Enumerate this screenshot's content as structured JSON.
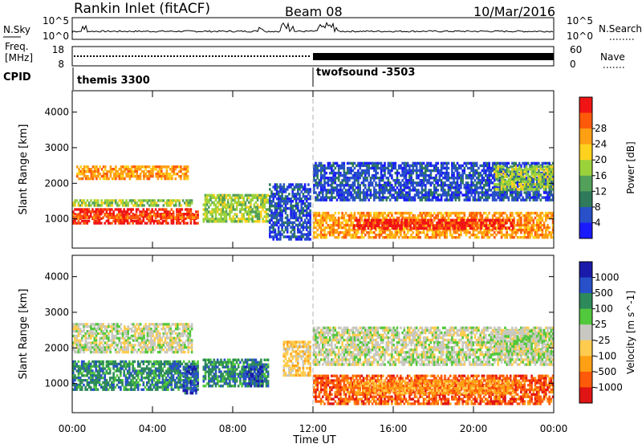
{
  "header": {
    "station": "Rankin Inlet (fitACF)",
    "beam": "Beam 08",
    "date": "10/Mar/2016"
  },
  "noise_panel": {
    "left_label": "N.Sky",
    "right_label": "N.Search",
    "left_ticks": [
      "10^5",
      "10^0"
    ],
    "right_ticks": [
      "10^5",
      "10^0"
    ]
  },
  "freq_panel": {
    "left_label_1": "Freq.",
    "left_label_2": "[MHz]",
    "left_ticks": [
      "18",
      "8"
    ],
    "right_label": "Nave",
    "right_ticks": [
      "60",
      "0"
    ]
  },
  "cpid": {
    "label": "CPID",
    "segments": [
      {
        "name": "themis 3300",
        "start_hour": 0
      },
      {
        "name": "twofsound -3503",
        "start_hour": 12
      }
    ]
  },
  "colors": {
    "power": [
      "#1a1aff",
      "#2850c8",
      "#2e7a5a",
      "#52a05a",
      "#9bd23c",
      "#ffd21e",
      "#ffa014",
      "#ff5a0a",
      "#f01414"
    ],
    "velocity": [
      "#e01414",
      "#ff5a0a",
      "#ffa014",
      "#ffcc50",
      "#c8c8c0",
      "#52c83c",
      "#2e8a5a",
      "#2850c8",
      "#1a1aaa"
    ]
  },
  "chart_data": [
    {
      "type": "heatmap",
      "title": "Power",
      "ylabel": "Slant Range [km]",
      "xlabel": "",
      "x_ticks": [
        "00:00",
        "04:00",
        "08:00",
        "12:00",
        "16:00",
        "20:00",
        "00:00"
      ],
      "xlim_hours": [
        0,
        24
      ],
      "y_ticks": [
        1000,
        2000,
        3000,
        4000
      ],
      "ylim": [
        180,
        4600
      ],
      "colorbar": {
        "label": "Power [dB]",
        "ticks": [
          4,
          8,
          12,
          16,
          20,
          24,
          28
        ]
      },
      "bands": [
        {
          "t0": 0.0,
          "t1": 6.3,
          "r0": 850,
          "r1": 1300,
          "level": 8
        },
        {
          "t0": 0.0,
          "t1": 6.3,
          "r0": 1000,
          "r1": 1150,
          "level": 7
        },
        {
          "t0": 0.0,
          "t1": 6.0,
          "r0": 1350,
          "r1": 1550,
          "level": 4
        },
        {
          "t0": 0.2,
          "t1": 5.8,
          "r0": 2100,
          "r1": 2500,
          "level": 6
        },
        {
          "t0": 6.5,
          "t1": 9.8,
          "r0": 900,
          "r1": 1700,
          "level": 4
        },
        {
          "t0": 9.8,
          "t1": 11.9,
          "r0": 400,
          "r1": 2000,
          "level": 1
        },
        {
          "t0": 12.0,
          "t1": 24.0,
          "r0": 450,
          "r1": 1200,
          "level": 6
        },
        {
          "t0": 14.0,
          "t1": 22.0,
          "r0": 700,
          "r1": 1000,
          "level": 8
        },
        {
          "t0": 12.0,
          "t1": 24.0,
          "r0": 1500,
          "r1": 2600,
          "level": 1
        },
        {
          "t0": 21.0,
          "t1": 24.0,
          "r0": 1800,
          "r1": 2500,
          "level": 4
        }
      ]
    },
    {
      "type": "heatmap",
      "title": "Velocity",
      "ylabel": "Slant Range [km]",
      "xlabel": "Time UT",
      "x_ticks": [
        "00:00",
        "04:00",
        "08:00",
        "12:00",
        "16:00",
        "20:00",
        "00:00"
      ],
      "xlim_hours": [
        0,
        24
      ],
      "y_ticks": [
        1000,
        2000,
        3000,
        4000
      ],
      "ylim": [
        180,
        4600
      ],
      "colorbar": {
        "label": "Velocity [m s^-1]",
        "ticks": [
          1000,
          500,
          100,
          25,
          -25,
          -100,
          -500,
          -1000
        ]
      },
      "bands": [
        {
          "t0": 0.0,
          "t1": 6.3,
          "r0": 800,
          "r1": 1650,
          "level": 6
        },
        {
          "t0": 5.5,
          "t1": 6.3,
          "r0": 700,
          "r1": 1500,
          "level": 7
        },
        {
          "t0": 0.0,
          "t1": 6.0,
          "r0": 1850,
          "r1": 2700,
          "level": 4
        },
        {
          "t0": 6.5,
          "t1": 9.8,
          "r0": 900,
          "r1": 1700,
          "level": 6
        },
        {
          "t0": 8.5,
          "t1": 9.5,
          "r0": 900,
          "r1": 1500,
          "level": 7
        },
        {
          "t0": 10.5,
          "t1": 11.9,
          "r0": 1200,
          "r1": 2200,
          "level": 3
        },
        {
          "t0": 12.0,
          "t1": 24.0,
          "r0": 400,
          "r1": 1250,
          "level": 1
        },
        {
          "t0": 14.0,
          "t1": 22.0,
          "r0": 700,
          "r1": 1100,
          "level": 2
        },
        {
          "t0": 12.0,
          "t1": 24.0,
          "r0": 1500,
          "r1": 2600,
          "level": 4
        },
        {
          "t0": 21.0,
          "t1": 24.0,
          "r0": 1800,
          "r1": 2500,
          "level": 4
        }
      ]
    }
  ]
}
